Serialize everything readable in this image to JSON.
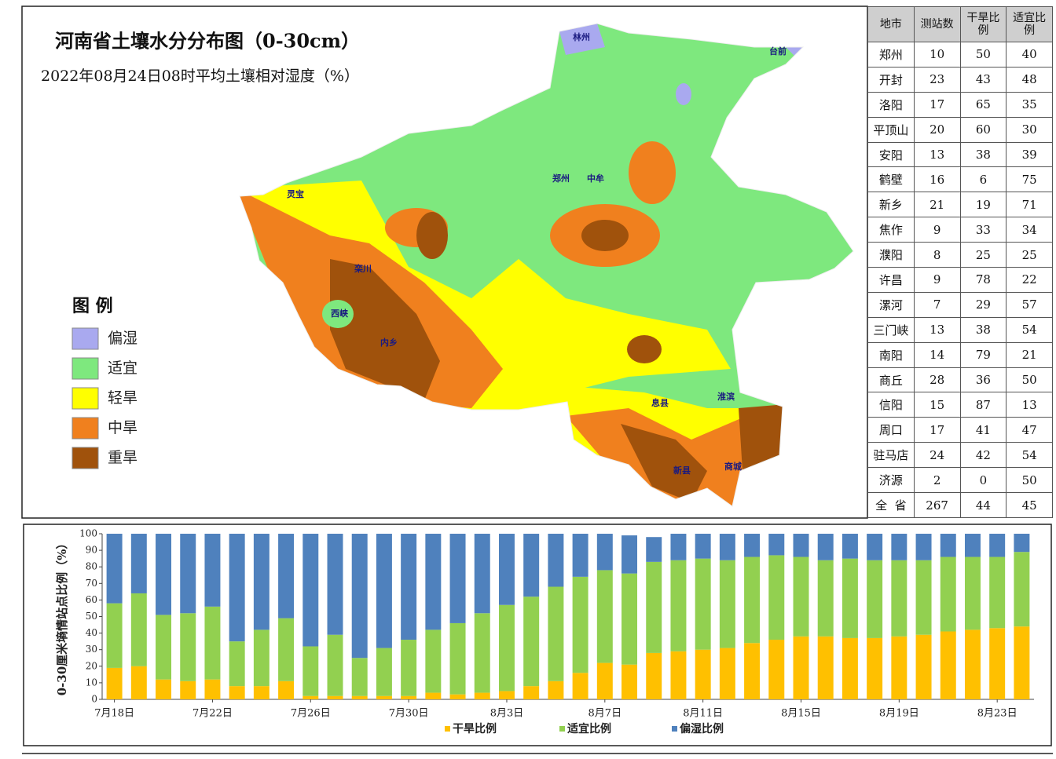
{
  "map": {
    "title": "河南省土壤水分分布图（0-30cm）",
    "subtitle": "2022年08月24日08时平均土壤相对湿度（%）",
    "legend_title": "图 例",
    "legend": [
      {
        "label": "偏湿",
        "color": "#a9a9ef"
      },
      {
        "label": "适宜",
        "color": "#7ee87e"
      },
      {
        "label": "轻旱",
        "color": "#ffff00"
      },
      {
        "label": "中旱",
        "color": "#f0801e"
      },
      {
        "label": "重旱",
        "color": "#a0520c"
      }
    ],
    "place_labels": [
      "郑州",
      "中牟",
      "栾川",
      "西峡",
      "内乡",
      "商城",
      "新县",
      "淮滨",
      "台前",
      "林州",
      "灵宝",
      "息县"
    ]
  },
  "table": {
    "header": [
      "地市",
      "测站数",
      "干旱比例",
      "适宜比例"
    ],
    "rows": [
      [
        "郑州",
        "10",
        "50",
        "40"
      ],
      [
        "开封",
        "23",
        "43",
        "48"
      ],
      [
        "洛阳",
        "17",
        "65",
        "35"
      ],
      [
        "平顶山",
        "20",
        "60",
        "30"
      ],
      [
        "安阳",
        "13",
        "38",
        "39"
      ],
      [
        "鹤壁",
        "16",
        "6",
        "75"
      ],
      [
        "新乡",
        "21",
        "19",
        "71"
      ],
      [
        "焦作",
        "9",
        "33",
        "34"
      ],
      [
        "濮阳",
        "8",
        "25",
        "25"
      ],
      [
        "许昌",
        "9",
        "78",
        "22"
      ],
      [
        "漯河",
        "7",
        "29",
        "57"
      ],
      [
        "三门峡",
        "13",
        "38",
        "54"
      ],
      [
        "南阳",
        "14",
        "79",
        "21"
      ],
      [
        "商丘",
        "28",
        "36",
        "50"
      ],
      [
        "信阳",
        "15",
        "87",
        "13"
      ],
      [
        "周口",
        "17",
        "41",
        "47"
      ],
      [
        "驻马店",
        "24",
        "42",
        "54"
      ],
      [
        "济源",
        "2",
        "0",
        "50"
      ],
      [
        "全  省",
        "267",
        "44",
        "45"
      ]
    ]
  },
  "chart_data": {
    "type": "stacked_bar",
    "y_label": "0-30厘米墒情站点比例（%）",
    "categories": [
      "7月18日",
      null,
      null,
      null,
      "7月22日",
      null,
      null,
      null,
      "7月26日",
      null,
      null,
      null,
      "7月30日",
      null,
      null,
      null,
      "8月3日",
      null,
      null,
      null,
      "8月7日",
      null,
      null,
      null,
      "8月11日",
      null,
      null,
      null,
      "8月15日",
      null,
      null,
      null,
      "8月19日",
      null,
      null,
      null,
      "8月23日",
      null
    ],
    "series": [
      {
        "name": "干旱比例",
        "color": "#ffc000",
        "values": [
          19,
          20,
          12,
          11,
          12,
          8,
          8,
          11,
          2,
          2,
          2,
          2,
          2,
          4,
          3,
          4,
          5,
          8,
          11,
          16,
          22,
          21,
          28,
          29,
          30,
          31,
          34,
          36,
          38,
          38,
          37,
          37,
          38,
          39,
          41,
          42,
          43,
          44
        ]
      },
      {
        "name": "适宜比例",
        "color": "#92d050",
        "values": [
          39,
          44,
          39,
          41,
          44,
          27,
          34,
          38,
          30,
          37,
          23,
          29,
          34,
          38,
          43,
          48,
          52,
          54,
          57,
          58,
          56,
          55,
          55,
          55,
          55,
          53,
          52,
          51,
          48,
          46,
          48,
          47,
          46,
          45,
          45,
          44,
          43,
          45
        ]
      },
      {
        "name": "偏湿比例",
        "color": "#4f81bd",
        "values": [
          42,
          36,
          49,
          48,
          44,
          65,
          58,
          51,
          68,
          61,
          75,
          69,
          64,
          58,
          54,
          48,
          43,
          38,
          32,
          26,
          22,
          23,
          15,
          16,
          15,
          16,
          14,
          13,
          14,
          16,
          15,
          16,
          16,
          16,
          14,
          14,
          14,
          11
        ]
      }
    ],
    "ylim": [
      0,
      100
    ],
    "yticks": [
      0,
      10,
      20,
      30,
      40,
      50,
      60,
      70,
      80,
      90,
      100
    ]
  }
}
